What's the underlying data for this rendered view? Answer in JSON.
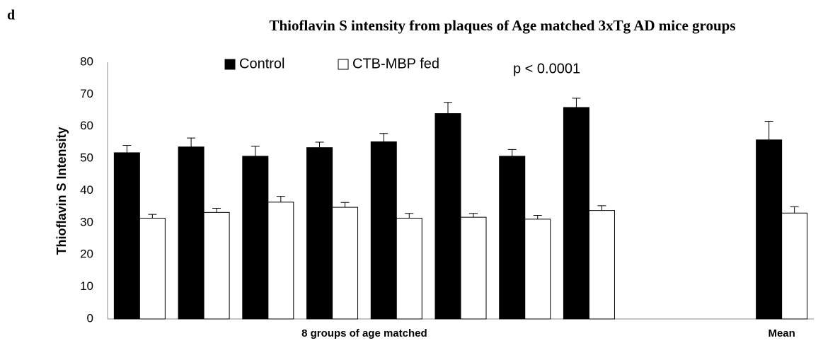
{
  "chart_data": {
    "type": "bar",
    "panel_label": "d",
    "title": "Thioflavin S intensity from plaques of Age matched 3xTg AD mice groups",
    "ylabel": "Thioflavin S Intensity",
    "xlabel": "8 groups of age matched",
    "annotation": "p < 0.0001",
    "categories": [
      null,
      null,
      null,
      null,
      null,
      null,
      null,
      null,
      null,
      null,
      "Mean"
    ],
    "series": [
      {
        "name": "Control",
        "color": "#000000",
        "values": [
          51.8,
          53.6,
          50.7,
          53.4,
          55.2,
          64.0,
          50.7,
          65.9,
          null,
          null,
          55.8
        ],
        "errors": [
          2.3,
          2.8,
          3.1,
          1.7,
          2.6,
          3.5,
          2.1,
          2.9,
          null,
          null,
          5.8
        ]
      },
      {
        "name": "CTB-MBP fed",
        "color": "#ffffff",
        "values": [
          31.4,
          33.2,
          36.4,
          34.8,
          31.4,
          31.7,
          31.1,
          33.8,
          null,
          null,
          33.0
        ],
        "errors": [
          1.2,
          1.3,
          1.8,
          1.5,
          1.5,
          1.2,
          1.2,
          1.5,
          null,
          null,
          2.0
        ]
      }
    ],
    "ylim": [
      0,
      80
    ],
    "yticks": [
      0,
      10,
      20,
      30,
      40,
      50,
      60,
      70,
      80
    ],
    "grid": false
  }
}
